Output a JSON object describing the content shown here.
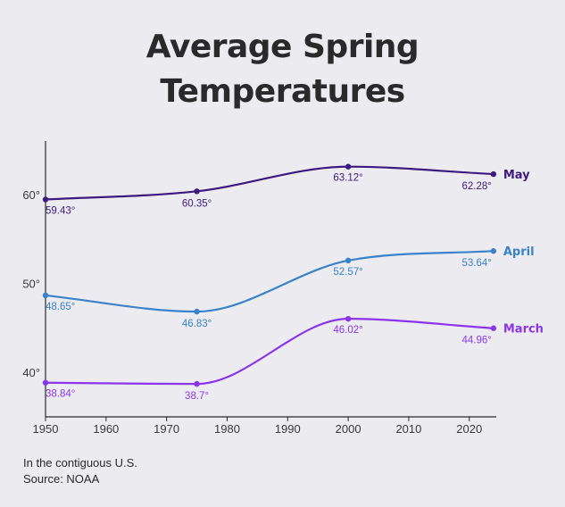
{
  "chart_data": {
    "type": "line",
    "title_lines": [
      "Average Spring",
      "Temperatures"
    ],
    "x": [
      1950,
      1975,
      2000,
      2024
    ],
    "xticks": [
      1950,
      1960,
      1970,
      1980,
      1990,
      2000,
      2010,
      2020
    ],
    "xtick_labels": [
      "1950",
      "1960",
      "1970",
      "1980",
      "1990",
      "2000",
      "2010",
      "2020"
    ],
    "yticks": [
      40,
      50,
      60
    ],
    "ytick_labels": [
      "40°",
      "50°",
      "60°"
    ],
    "xlim": [
      1950,
      2028
    ],
    "ylim": [
      35,
      66
    ],
    "grid": false,
    "series": [
      {
        "name": "May",
        "color": "#3d1a7d",
        "values": [
          59.43,
          60.35,
          63.12,
          62.28
        ],
        "labels": [
          "59.43°",
          "60.35°",
          "63.12°",
          "62.28°"
        ]
      },
      {
        "name": "April",
        "color": "#3a82c9",
        "values": [
          48.65,
          46.83,
          52.57,
          53.64
        ],
        "labels": [
          "48.65°",
          "46.83°",
          "52.57°",
          "53.64°"
        ]
      },
      {
        "name": "March",
        "color": "#8a35ea",
        "values": [
          38.84,
          38.7,
          46.02,
          44.96
        ],
        "labels": [
          "38.84°",
          "38.7°",
          "46.02°",
          "44.96°"
        ]
      }
    ]
  },
  "footnote": {
    "line1": "In the contiguous U.S.",
    "line2": "Source: NOAA"
  }
}
